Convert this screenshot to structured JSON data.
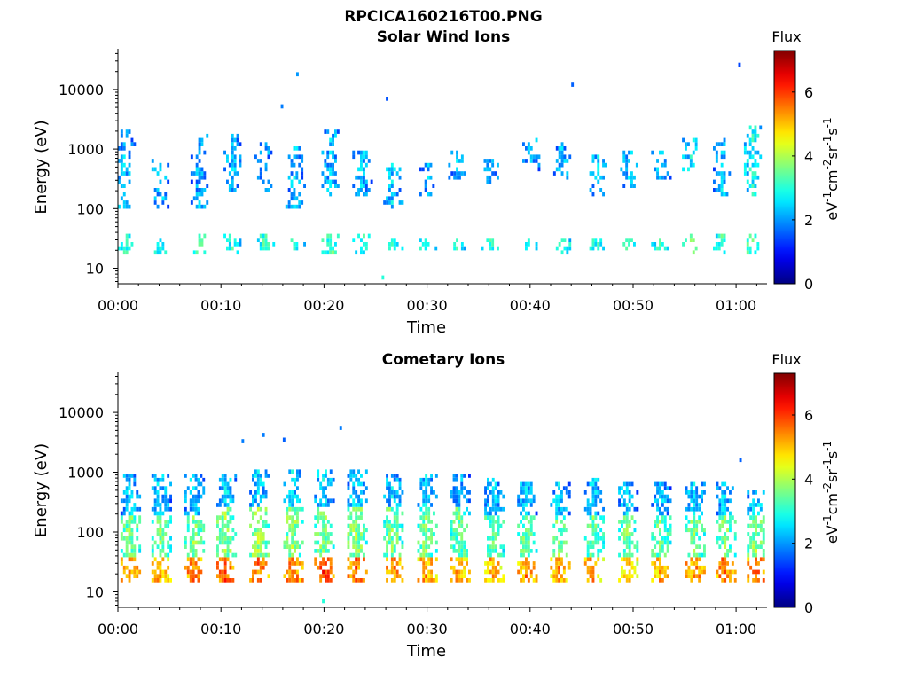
{
  "figure_title": "RPCICA160216T00.PNG",
  "colors": {
    "axis": "#000000",
    "background": "#ffffff"
  },
  "colorbar": {
    "title": "Flux",
    "label_parts": [
      {
        "t": "eV",
        "sup": false
      },
      {
        "t": "-1",
        "sup": true
      },
      {
        "t": "cm",
        "sup": false
      },
      {
        "t": "-2",
        "sup": true
      },
      {
        "t": "sr",
        "sup": false
      },
      {
        "t": "-1",
        "sup": true
      },
      {
        "t": "s",
        "sup": false
      },
      {
        "t": "-1",
        "sup": true
      }
    ],
    "min": 0,
    "max": 7.3,
    "ticks": [
      "0",
      "2",
      "4",
      "6"
    ],
    "colormap": "jet"
  },
  "chart_data": [
    {
      "type": "heatmap",
      "title": "Solar Wind Ions",
      "xlabel": "Time",
      "ylabel": "Energy (eV)",
      "x_unit": "minutes since 00:00",
      "xlim": [
        0,
        63
      ],
      "ylim": [
        5.5,
        45000
      ],
      "yscale": "log",
      "xticks": [
        "00:00",
        "00:10",
        "00:20",
        "00:30",
        "00:40",
        "00:50",
        "01:00"
      ],
      "yticks": [
        "10",
        "100",
        "1000",
        "10000"
      ],
      "grid": false,
      "spectra": [
        {
          "t": 0.5,
          "ranges": [
            [
              18,
              35,
              3.0
            ],
            [
              100,
              900,
              2.4
            ],
            [
              1000,
              2200,
              2.2
            ]
          ]
        },
        {
          "t": 4,
          "ranges": [
            [
              18,
              30,
              3.0
            ],
            [
              100,
              700,
              2.3
            ]
          ]
        },
        {
          "t": 7.8,
          "ranges": [
            [
              18,
              35,
              3.2
            ],
            [
              100,
              1800,
              2.2
            ]
          ]
        },
        {
          "t": 11,
          "ranges": [
            [
              18,
              35,
              3.0
            ],
            [
              200,
              1800,
              2.3
            ]
          ]
        },
        {
          "t": 14,
          "ranges": [
            [
              20,
              35,
              3.1
            ],
            [
              200,
              1400,
              2.2
            ]
          ]
        },
        {
          "t": 17,
          "ranges": [
            [
              20,
              32,
              3.0
            ],
            [
              100,
              1100,
              2.3
            ]
          ]
        },
        {
          "t": 20.5,
          "ranges": [
            [
              18,
              35,
              3.3
            ],
            [
              150,
              2200,
              2.3
            ]
          ]
        },
        {
          "t": 23.5,
          "ranges": [
            [
              18,
              35,
              3.0
            ],
            [
              150,
              900,
              2.3
            ]
          ]
        },
        {
          "t": 26.5,
          "ranges": [
            [
              20,
              30,
              3.0
            ],
            [
              80,
              600,
              2.4
            ]
          ]
        },
        {
          "t": 30,
          "ranges": [
            [
              20,
              30,
              3.0
            ],
            [
              150,
              600,
              2.2
            ]
          ]
        },
        {
          "t": 32.8,
          "ranges": [
            [
              20,
              32,
              3.0
            ],
            [
              300,
              1000,
              2.2
            ]
          ]
        },
        {
          "t": 36,
          "ranges": [
            [
              20,
              30,
              3.0
            ],
            [
              250,
              700,
              2.2
            ]
          ]
        },
        {
          "t": 40,
          "ranges": [
            [
              20,
              30,
              3.0
            ],
            [
              400,
              1600,
              2.3
            ]
          ]
        },
        {
          "t": 43,
          "ranges": [
            [
              18,
              30,
              3.0
            ],
            [
              300,
              1400,
              2.2
            ]
          ]
        },
        {
          "t": 46.5,
          "ranges": [
            [
              20,
              30,
              3.0
            ],
            [
              150,
              800,
              2.3
            ]
          ]
        },
        {
          "t": 49.5,
          "ranges": [
            [
              20,
              30,
              3.0
            ],
            [
              200,
              1000,
              2.3
            ]
          ]
        },
        {
          "t": 52.5,
          "ranges": [
            [
              20,
              30,
              3.0
            ],
            [
              300,
              1000,
              2.2
            ]
          ]
        },
        {
          "t": 55.5,
          "ranges": [
            [
              18,
              35,
              3.3
            ],
            [
              400,
              1500,
              2.6
            ]
          ]
        },
        {
          "t": 58.5,
          "ranges": [
            [
              18,
              35,
              3.2
            ],
            [
              150,
              1800,
              2.3
            ]
          ]
        },
        {
          "t": 61.5,
          "ranges": [
            [
              18,
              35,
              3.4
            ],
            [
              150,
              2500,
              2.8
            ]
          ]
        }
      ],
      "outliers": [
        [
          17.3,
          18000,
          2.0
        ],
        [
          15.8,
          5200,
          1.8
        ],
        [
          26,
          7000,
          1.5
        ],
        [
          44,
          12000,
          1.6
        ],
        [
          60.2,
          26000,
          1.4
        ],
        [
          25.6,
          7,
          3.0
        ]
      ]
    },
    {
      "type": "heatmap",
      "title": "Cometary Ions",
      "xlabel": "Time",
      "ylabel": "Energy (eV)",
      "x_unit": "minutes since 00:00",
      "xlim": [
        0,
        63
      ],
      "ylim": [
        5.5,
        45000
      ],
      "yscale": "log",
      "xticks": [
        "00:00",
        "00:10",
        "00:20",
        "00:30",
        "00:40",
        "00:50",
        "01:00"
      ],
      "yticks": [
        "10",
        "100",
        "1000",
        "10000"
      ],
      "grid": false,
      "spectra": [
        {
          "t": 1,
          "ranges": [
            [
              15,
              40,
              5.5
            ],
            [
              40,
              200,
              3.6
            ],
            [
              200,
              1000,
              2.3
            ]
          ]
        },
        {
          "t": 4,
          "ranges": [
            [
              15,
              40,
              5.2
            ],
            [
              40,
              200,
              3.6
            ],
            [
              200,
              1000,
              2.4
            ]
          ]
        },
        {
          "t": 7.2,
          "ranges": [
            [
              15,
              40,
              5.6
            ],
            [
              40,
              200,
              3.7
            ],
            [
              200,
              1000,
              2.4
            ]
          ]
        },
        {
          "t": 10.3,
          "ranges": [
            [
              15,
              40,
              5.8
            ],
            [
              40,
              250,
              3.8
            ],
            [
              250,
              1000,
              2.5
            ]
          ]
        },
        {
          "t": 13.5,
          "ranges": [
            [
              15,
              40,
              5.6
            ],
            [
              40,
              250,
              3.9
            ],
            [
              250,
              1200,
              2.5
            ]
          ]
        },
        {
          "t": 16.8,
          "ranges": [
            [
              15,
              40,
              5.7
            ],
            [
              40,
              250,
              3.8
            ],
            [
              250,
              1100,
              2.5
            ]
          ]
        },
        {
          "t": 19.8,
          "ranges": [
            [
              15,
              40,
              6.0
            ],
            [
              40,
              250,
              3.7
            ],
            [
              250,
              1200,
              2.5
            ]
          ]
        },
        {
          "t": 23,
          "ranges": [
            [
              15,
              40,
              5.7
            ],
            [
              40,
              250,
              3.8
            ],
            [
              250,
              1200,
              2.4
            ]
          ]
        },
        {
          "t": 26.5,
          "ranges": [
            [
              15,
              40,
              5.5
            ],
            [
              40,
              250,
              3.6
            ],
            [
              250,
              1000,
              2.4
            ]
          ]
        },
        {
          "t": 29.8,
          "ranges": [
            [
              15,
              40,
              5.3
            ],
            [
              40,
              250,
              3.6
            ],
            [
              250,
              900,
              2.4
            ]
          ]
        },
        {
          "t": 33,
          "ranges": [
            [
              15,
              40,
              5.3
            ],
            [
              40,
              250,
              3.5
            ],
            [
              250,
              900,
              2.3
            ]
          ]
        },
        {
          "t": 36.3,
          "ranges": [
            [
              15,
              40,
              5.2
            ],
            [
              40,
              200,
              3.5
            ],
            [
              200,
              800,
              2.4
            ]
          ]
        },
        {
          "t": 39.5,
          "ranges": [
            [
              15,
              40,
              5.5
            ],
            [
              40,
              200,
              3.5
            ],
            [
              200,
              700,
              2.4
            ]
          ]
        },
        {
          "t": 42.7,
          "ranges": [
            [
              15,
              40,
              5.3
            ],
            [
              40,
              200,
              3.6
            ],
            [
              200,
              700,
              2.4
            ]
          ]
        },
        {
          "t": 46,
          "ranges": [
            [
              15,
              40,
              5.3
            ],
            [
              40,
              200,
              3.5
            ],
            [
              200,
              800,
              2.4
            ]
          ]
        },
        {
          "t": 49.3,
          "ranges": [
            [
              15,
              40,
              5.0
            ],
            [
              40,
              200,
              3.5
            ],
            [
              200,
              700,
              2.4
            ]
          ]
        },
        {
          "t": 52.5,
          "ranges": [
            [
              15,
              40,
              5.2
            ],
            [
              40,
              200,
              3.5
            ],
            [
              200,
              700,
              2.3
            ]
          ]
        },
        {
          "t": 55.8,
          "ranges": [
            [
              15,
              40,
              5.5
            ],
            [
              40,
              200,
              3.6
            ],
            [
              200,
              700,
              2.4
            ]
          ]
        },
        {
          "t": 58.8,
          "ranges": [
            [
              15,
              40,
              5.6
            ],
            [
              40,
              200,
              3.6
            ],
            [
              200,
              700,
              2.4
            ]
          ]
        },
        {
          "t": 61.8,
          "ranges": [
            [
              15,
              40,
              5.7
            ],
            [
              40,
              200,
              3.8
            ],
            [
              200,
              500,
              2.5
            ]
          ]
        }
      ],
      "outliers": [
        [
          12,
          3300,
          1.8
        ],
        [
          14,
          4200,
          1.8
        ],
        [
          16,
          3500,
          1.6
        ],
        [
          21.5,
          5500,
          1.8
        ],
        [
          60.3,
          1600,
          1.6
        ],
        [
          19.8,
          7,
          3.0
        ]
      ]
    }
  ]
}
